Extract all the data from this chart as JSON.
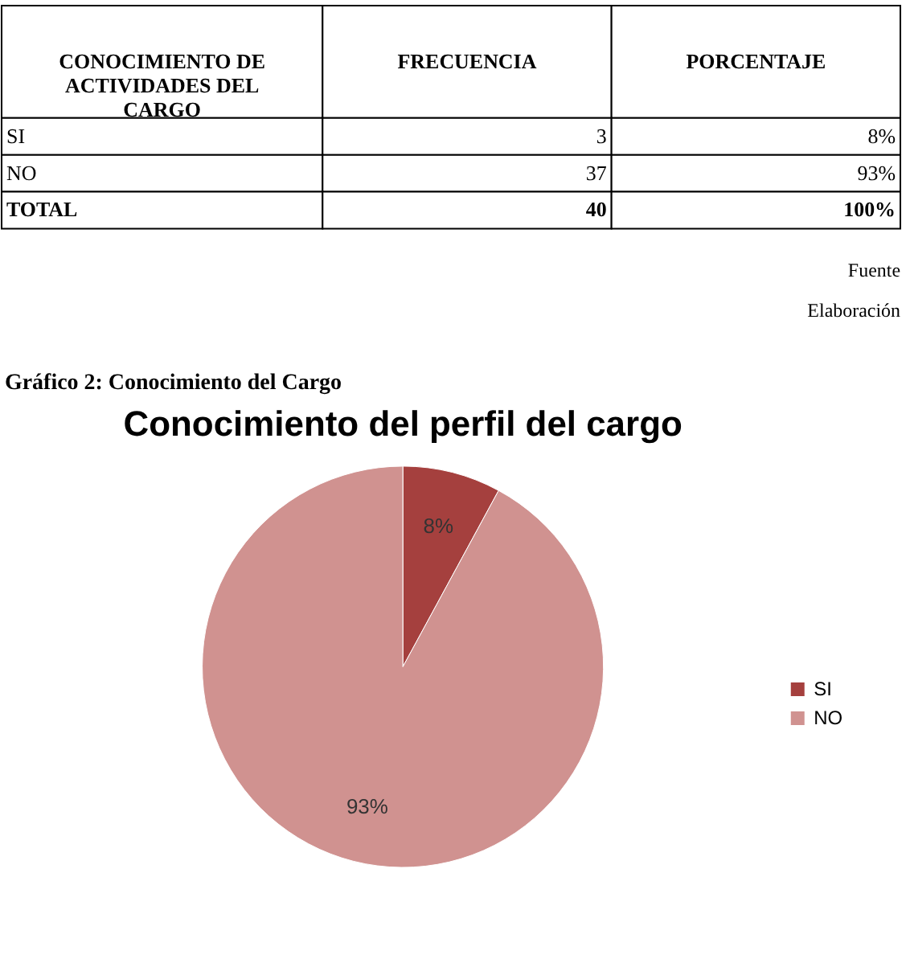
{
  "chart_data": [
    {
      "type": "other",
      "annotations": [
        "CONOCIMIENTO DE ACTIVIDADES DEL CARGO",
        "FRECUENCIA",
        "PORCENTAJE",
        "SI",
        "3",
        "8%",
        "NO",
        "37",
        "93%",
        "TOTAL",
        "40",
        "100%",
        "Fuente",
        "Elaboración",
        "Gráfico 2: Conocimiento del Cargo"
      ]
    },
    {
      "type": "pie",
      "title": "Conocimiento del perfil del cargo",
      "categories": [
        "SI",
        "NO"
      ],
      "values": [
        8,
        93
      ],
      "colors": [
        "#a5403e",
        "#d09290"
      ],
      "value_labels": [
        "8%",
        "93%"
      ],
      "legend": "right"
    }
  ]
}
